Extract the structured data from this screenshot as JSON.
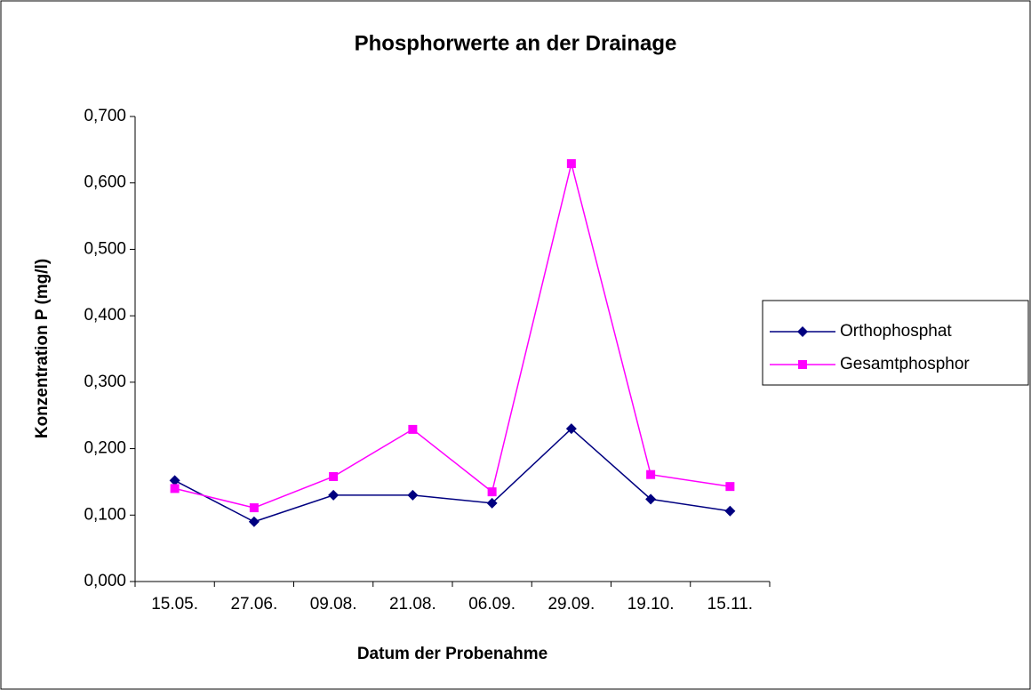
{
  "chart_data": {
    "type": "line",
    "title": "Phosphorwerte an der Drainage",
    "x_label": "Datum der Probenahme",
    "y_label": "Konzentration P (mg/l)",
    "categories": [
      "15.05.",
      "27.06.",
      "09.08.",
      "21.08.",
      "06.09.",
      "29.09.",
      "19.10.",
      "15.11."
    ],
    "series": [
      {
        "name": "Orthophosphat",
        "color": "#000080",
        "marker": "diamond",
        "values": [
          0.152,
          0.09,
          0.13,
          0.13,
          0.118,
          0.23,
          0.124,
          0.106
        ]
      },
      {
        "name": "Gesamtphosphor",
        "color": "#ff00ff",
        "marker": "square",
        "values": [
          0.14,
          0.111,
          0.158,
          0.229,
          0.135,
          0.629,
          0.161,
          0.143
        ]
      }
    ],
    "ylim": [
      0,
      0.7
    ],
    "yticks": [
      {
        "value": 0,
        "label": "0,000"
      },
      {
        "value": 0.1,
        "label": "0,100"
      },
      {
        "value": 0.2,
        "label": "0,200"
      },
      {
        "value": 0.3,
        "label": "0,300"
      },
      {
        "value": 0.4,
        "label": "0,400"
      },
      {
        "value": 0.5,
        "label": "0,500"
      },
      {
        "value": 0.6,
        "label": "0,600"
      },
      {
        "value": 0.7,
        "label": "0,700"
      }
    ],
    "grid": false,
    "legend": "right"
  }
}
